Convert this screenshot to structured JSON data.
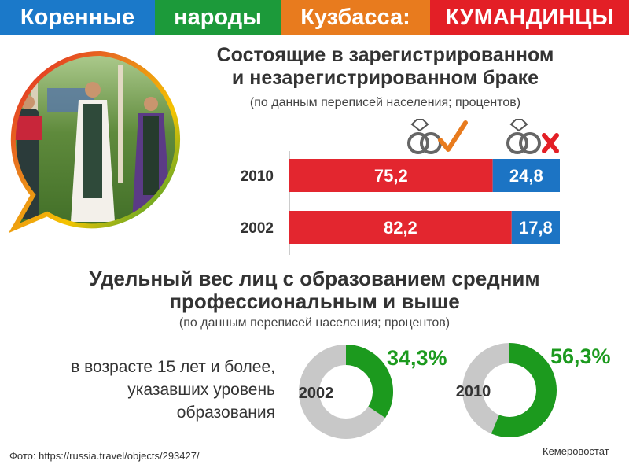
{
  "header": {
    "words": [
      "Коренные",
      "народы",
      "Кузбасса:",
      "КУМАНДИНЦЫ"
    ],
    "colors": [
      "#1b79c9",
      "#1c9a3a",
      "#e87b1e",
      "#e31f26"
    ]
  },
  "marriage": {
    "title_line1": "Состоящие в зарегистрированном",
    "title_line2": "и незарегистрированном браке",
    "subtitle": "(по данным переписей населения; процентов)",
    "icons": [
      "rings-check-icon",
      "rings-cross-icon"
    ]
  },
  "education": {
    "title_line1": "Удельный вес лиц с образованием средним",
    "title_line2": "профессиональным и выше",
    "subtitle": "(по данным переписей населения; процентов)",
    "label_line1": "в возрасте 15 лет и более,",
    "label_line2": "указавших уровень",
    "label_line3": "образования"
  },
  "footer": {
    "photo_credit": "Фото: https://russia.travel/objects/293427/",
    "source": "Кемеровостат"
  },
  "chart_data": [
    {
      "type": "bar",
      "orientation": "horizontal",
      "stacked": true,
      "categories": [
        "2010",
        "2002"
      ],
      "series": [
        {
          "values": [
            75.2,
            82.2
          ],
          "labels": [
            "75,2",
            "82,2"
          ],
          "color": "#e3262f"
        },
        {
          "values": [
            24.8,
            17.8
          ],
          "labels": [
            "24,8",
            "17,8"
          ],
          "color": "#1c74c4"
        }
      ],
      "xlim": [
        0,
        100
      ]
    },
    {
      "type": "pie",
      "donut": true,
      "year": "2002",
      "value": 34.3,
      "value_label": "34,3%",
      "colors": {
        "value": "#1c9a1e",
        "rest": "#c8c8c8"
      }
    },
    {
      "type": "pie",
      "donut": true,
      "year": "2010",
      "value": 56.3,
      "value_label": "56,3%",
      "colors": {
        "value": "#1c9a1e",
        "rest": "#c8c8c8"
      }
    }
  ]
}
